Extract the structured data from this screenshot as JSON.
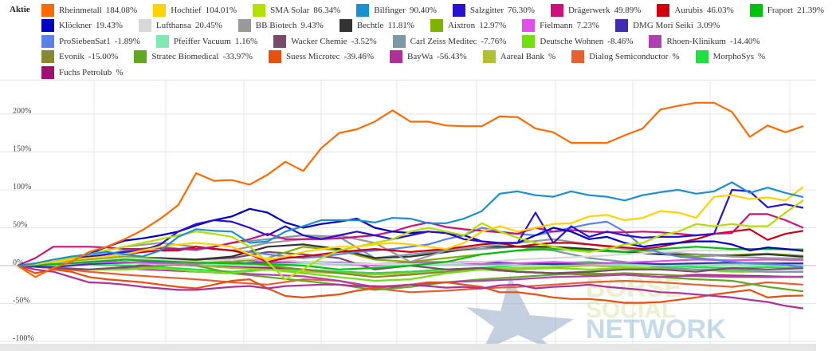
{
  "legend": {
    "title": "Aktie",
    "rows": [
      [
        {
          "name": "Rheinmetall",
          "value": "184.08%",
          "color": "#ff6a00"
        },
        {
          "name": "Hochtief",
          "value": "104.01%",
          "color": "#ffd200"
        },
        {
          "name": "SMA Solar",
          "value": "86.34%",
          "color": "#b4e000"
        },
        {
          "name": "Bilfinger",
          "value": "90.40%",
          "color": "#1a90d0"
        },
        {
          "name": "Salzgitter",
          "value": "76.30%",
          "color": "#2a10d0"
        },
        {
          "name": "Drägerwerk",
          "value": "49.89%",
          "color": "#d0107a"
        },
        {
          "name": "Aurubis",
          "value": "46.03%",
          "color": "#d00010"
        },
        {
          "name": "Fraport",
          "value": "21.39%",
          "color": "#00c010"
        }
      ],
      [
        {
          "name": "Klöckner",
          "value": "19.43%",
          "color": "#0000c0"
        },
        {
          "name": "Lufthansa",
          "value": "20.45%",
          "color": "#d8d8d8"
        },
        {
          "name": "BB Biotech",
          "value": "9.43%",
          "color": "#999999"
        },
        {
          "name": "Bechtle",
          "value": "11.81%",
          "color": "#333333"
        },
        {
          "name": "Aixtron",
          "value": "12.97%",
          "color": "#80b000"
        },
        {
          "name": "Fielmann",
          "value": "7.23%",
          "color": "#e050e8"
        },
        {
          "name": "DMG Mori Seiki",
          "value": "3.09%",
          "color": "#4030b0"
        }
      ],
      [
        {
          "name": "ProSiebenSat1",
          "value": "-1.89%",
          "color": "#5b80e8"
        },
        {
          "name": "Pfeiffer Vacuum",
          "value": "1.16%",
          "color": "#80e8b0"
        },
        {
          "name": "Wacker Chemie",
          "value": "-3.52%",
          "color": "#7a4a6a"
        },
        {
          "name": "Carl Zeiss Meditec",
          "value": "-7.76%",
          "color": "#7a9aa8"
        },
        {
          "name": "Deutsche Wohnen",
          "value": "-8.46%",
          "color": "#70e010"
        },
        {
          "name": "Rhoen-Klinikum",
          "value": "-14.40%",
          "color": "#b040b0"
        }
      ],
      [
        {
          "name": "Evonik",
          "value": "-15.00%",
          "color": "#888830"
        },
        {
          "name": "Stratec Biomedical",
          "value": "-33.97%",
          "color": "#60a820"
        },
        {
          "name": "Suess Microtec",
          "value": "-39.46%",
          "color": "#e85010"
        },
        {
          "name": "BayWa",
          "value": "-56.43%",
          "color": "#b0309a"
        },
        {
          "name": "Aareal Bank",
          "value": "%",
          "color": "#b0c030"
        },
        {
          "name": "Dialog Semiconductor",
          "value": "%",
          "color": "#e86030"
        },
        {
          "name": "MorphoSys",
          "value": "%",
          "color": "#20e040"
        }
      ],
      [
        {
          "name": "Fuchs Petrolub",
          "value": "%",
          "color": "#a01070"
        }
      ]
    ]
  },
  "watermark": {
    "line1": "BÖRSE",
    "line2": "SOCIAL",
    "line3": "NETWORK"
  },
  "chart_data": {
    "type": "line",
    "title": "",
    "xlabel": "",
    "ylabel": "",
    "ylim": [
      -100,
      245
    ],
    "yticks": [
      {
        "value": 200,
        "label": "200%"
      },
      {
        "value": 150,
        "label": "150%"
      },
      {
        "value": 100,
        "label": "100%"
      },
      {
        "value": 50,
        "label": "50%"
      },
      {
        "value": 0,
        "label": "0%"
      },
      {
        "value": -50,
        "label": "-50%"
      },
      {
        "value": -100,
        "label": "-100%"
      }
    ],
    "grid": true,
    "legend_position": "top",
    "series": [
      {
        "name": "Fuchs Petrolub",
        "color": "#a01070",
        "values": [
          0,
          3,
          5,
          4,
          2,
          0,
          -2,
          -3,
          -5,
          -8,
          -10,
          -8,
          -5,
          -5,
          -8,
          -10,
          -12,
          -12,
          -15,
          -12,
          -13,
          -14,
          -15
        ]
      },
      {
        "name": "MorphoSys",
        "color": "#20e040",
        "values": [
          0,
          1,
          2,
          0,
          -2,
          -5,
          -8,
          -5,
          -5,
          -8,
          -10,
          -8,
          -5,
          -3,
          0,
          3,
          5,
          2,
          0,
          -2,
          -3,
          -2,
          -3
        ]
      },
      {
        "name": "Dialog Semiconductor",
        "color": "#e86030",
        "values": [
          0,
          -3,
          -8,
          -12,
          -15,
          -18,
          -22,
          -25,
          -18,
          -20,
          -30,
          -35,
          -33,
          -30,
          -28,
          -25,
          -22,
          -20,
          -22,
          -25,
          -28,
          -22,
          -25
        ]
      },
      {
        "name": "Aareal Bank",
        "color": "#b0c030",
        "values": [
          0,
          2,
          3,
          5,
          3,
          0,
          -3,
          -5,
          -8,
          -10,
          -12,
          -10,
          -8,
          -5,
          -3,
          -2,
          0,
          -2,
          -3,
          -5,
          -6,
          -8,
          -8
        ]
      },
      {
        "name": "Stratec Biomedical",
        "color": "#60a820",
        "values": [
          0,
          2,
          5,
          8,
          5,
          0,
          -10,
          -15,
          -20,
          -25,
          -32,
          -28,
          -22,
          -18,
          -15,
          -12,
          -10,
          -12,
          -15,
          -18,
          -20,
          -28,
          -34
        ]
      },
      {
        "name": "Evonik",
        "color": "#888830",
        "values": [
          0,
          -3,
          -5,
          -3,
          0,
          3,
          5,
          0,
          -5,
          -10,
          -15,
          -12,
          -8,
          -5,
          -8,
          -10,
          -12,
          -10,
          -12,
          -14,
          -15,
          -15,
          -15
        ]
      },
      {
        "name": "Rhoen-Klinikum",
        "color": "#b040b0",
        "values": [
          0,
          -3,
          -5,
          -4,
          -6,
          -8,
          -10,
          -12,
          -14,
          -20,
          -28,
          -25,
          -22,
          -20,
          -18,
          -15,
          -14,
          -12,
          -15,
          -13,
          -14,
          -15,
          -14.4
        ]
      },
      {
        "name": "Deutsche Wohnen",
        "color": "#70e010",
        "values": [
          0,
          -2,
          -5,
          -5,
          -3,
          -8,
          -10,
          -5,
          -10,
          -15,
          -20,
          -18,
          -10,
          -5,
          -5,
          -3,
          -5,
          -3,
          -3,
          -5,
          -8,
          -8,
          -8.46
        ]
      },
      {
        "name": "Carl Zeiss Meditec",
        "color": "#7a9aa8",
        "values": [
          0,
          5,
          10,
          20,
          25,
          20,
          30,
          35,
          40,
          38,
          10,
          15,
          20,
          22,
          25,
          20,
          10,
          5,
          -2,
          -5,
          -5,
          -8,
          -7.76
        ]
      },
      {
        "name": "Wacker Chemie",
        "color": "#7a4a6a",
        "values": [
          0,
          -3,
          -5,
          -2,
          3,
          8,
          10,
          18,
          15,
          10,
          -5,
          0,
          -5,
          -3,
          -8,
          -10,
          -8,
          -5,
          -5,
          -8,
          -3,
          -5,
          -3.52
        ]
      },
      {
        "name": "Pfeiffer Vacuum",
        "color": "#80e8b0",
        "values": [
          0,
          1,
          2,
          3,
          2,
          2,
          1,
          2,
          3,
          2,
          1,
          1,
          2,
          1,
          0,
          1,
          2,
          1,
          0,
          1,
          2,
          1,
          1.16
        ]
      },
      {
        "name": "DMG Mori Seiki",
        "color": "#4030b0",
        "values": [
          0,
          -2,
          2,
          4,
          5,
          5,
          3,
          4,
          5,
          4,
          2,
          3,
          4,
          5,
          3,
          2,
          3,
          4,
          2,
          3,
          4,
          3,
          3.09
        ]
      },
      {
        "name": "Fielmann",
        "color": "#e050e8",
        "values": [
          0,
          2,
          4,
          5,
          3,
          2,
          8,
          5,
          5,
          3,
          0,
          5,
          5,
          2,
          3,
          5,
          3,
          4,
          6,
          8,
          7,
          8,
          7.23
        ]
      },
      {
        "name": "Aixtron",
        "color": "#80b000",
        "values": [
          0,
          3,
          8,
          12,
          10,
          6,
          5,
          10,
          25,
          20,
          8,
          5,
          10,
          15,
          20,
          25,
          20,
          18,
          15,
          12,
          14,
          16,
          12.97
        ]
      },
      {
        "name": "Bechtle",
        "color": "#333333",
        "values": [
          0,
          2,
          5,
          8,
          10,
          8,
          12,
          25,
          28,
          22,
          10,
          12,
          18,
          25,
          25,
          25,
          22,
          18,
          15,
          15,
          13,
          15,
          11.81
        ]
      },
      {
        "name": "BB Biotech",
        "color": "#999999",
        "values": [
          0,
          5,
          15,
          25,
          30,
          25,
          20,
          30,
          35,
          40,
          30,
          5,
          20,
          25,
          30,
          35,
          28,
          22,
          18,
          15,
          12,
          10,
          9.43
        ]
      },
      {
        "name": "Lufthansa",
        "color": "#d8d8d8",
        "values": [
          0,
          3,
          6,
          10,
          8,
          5,
          8,
          10,
          5,
          3,
          2,
          2,
          3,
          5,
          8,
          10,
          12,
          15,
          18,
          20,
          20,
          22,
          20.45
        ]
      },
      {
        "name": "Fraport",
        "color": "#00c010",
        "values": [
          0,
          2,
          5,
          8,
          6,
          4,
          3,
          2,
          0,
          -5,
          -3,
          0,
          5,
          15,
          20,
          22,
          20,
          18,
          22,
          25,
          22,
          22,
          21.39
        ]
      },
      {
        "name": "ProSiebenSat1",
        "color": "#5b80e8",
        "values": [
          0,
          3,
          5,
          8,
          10,
          12,
          15,
          18,
          20,
          22,
          25,
          22,
          20,
          18,
          15,
          12,
          10,
          12,
          15,
          18,
          20,
          22,
          25,
          28,
          35,
          40,
          50,
          45,
          42,
          40,
          45,
          50,
          55,
          58,
          45,
          25,
          17,
          12,
          10,
          8,
          5,
          3,
          2,
          1,
          -1.89
        ]
      },
      {
        "name": "Suess Microtec",
        "color": "#e85010",
        "values": [
          0,
          -10,
          -5,
          -8,
          -15,
          -18,
          -20,
          -22,
          -25,
          -28,
          -30,
          -25,
          -20,
          -18,
          -30,
          -40,
          -42,
          -40,
          -38,
          -33,
          -30,
          -27,
          -25,
          -22,
          -22,
          -25,
          -28,
          -35,
          -35,
          -38,
          -42,
          -44,
          -44,
          -46,
          -49,
          -49,
          -48,
          -45,
          -42,
          -38,
          -35,
          -32,
          -42,
          -40,
          -39.46
        ]
      },
      {
        "name": "BayWa",
        "color": "#b0309a",
        "values": [
          0,
          -5,
          -8,
          -15,
          -22,
          -23,
          -25,
          -28,
          -30,
          -32,
          -32,
          -30,
          -28,
          -27,
          -30,
          -27,
          -26,
          -25,
          -25,
          -27,
          -27,
          -28,
          -25,
          -27,
          -29,
          -28,
          -30,
          -26,
          -25,
          -30,
          -28,
          -27,
          -25,
          -28,
          -30,
          -32,
          -35,
          -36,
          -38,
          -40,
          -42,
          -45,
          -48,
          -53,
          -56.43
        ]
      },
      {
        "name": "Aurubis",
        "color": "#d00010",
        "values": [
          0,
          2,
          5,
          8,
          10,
          12,
          15,
          18,
          20,
          20,
          25,
          22,
          20,
          15,
          5,
          10,
          12,
          15,
          18,
          20,
          22,
          20,
          18,
          20,
          22,
          25,
          28,
          30,
          25,
          28,
          30,
          30,
          28,
          26,
          24,
          22,
          25,
          30,
          35,
          42,
          45,
          48,
          34,
          42,
          46.03
        ]
      },
      {
        "name": "Drägerwerk",
        "color": "#d0107a",
        "values": [
          0,
          10,
          25,
          25,
          25,
          24,
          22,
          22,
          23,
          22,
          22,
          25,
          30,
          35,
          42,
          35,
          35,
          35,
          36,
          38,
          40,
          45,
          52,
          57,
          51,
          48,
          46,
          44,
          42,
          50,
          45,
          47,
          45,
          44,
          44,
          45,
          44,
          42,
          40,
          42,
          43,
          68,
          68,
          60,
          49.89
        ]
      },
      {
        "name": "Klöckner",
        "color": "#0000c0",
        "values": [
          0,
          2,
          5,
          10,
          15,
          25,
          33,
          36,
          40,
          45,
          53,
          60,
          65,
          75,
          70,
          57,
          50,
          55,
          58,
          62,
          50,
          45,
          43,
          45,
          43,
          40,
          32,
          30,
          30,
          40,
          50,
          45,
          35,
          38,
          30,
          25,
          28,
          30,
          32,
          32,
          28,
          20,
          24,
          22,
          19.43
        ]
      },
      {
        "name": "Salzgitter",
        "color": "#2a10d0",
        "values": [
          0,
          2,
          5,
          10,
          12,
          15,
          18,
          20,
          28,
          45,
          55,
          60,
          58,
          50,
          40,
          52,
          40,
          35,
          40,
          45,
          40,
          35,
          40,
          45,
          43,
          35,
          32,
          30,
          30,
          70,
          30,
          52,
          38,
          45,
          40,
          37,
          38,
          38,
          40,
          42,
          100,
          98,
          77,
          81,
          76.3
        ]
      },
      {
        "name": "SMA Solar",
        "color": "#b4e000",
        "values": [
          0,
          2,
          5,
          10,
          15,
          20,
          25,
          30,
          35,
          40,
          45,
          42,
          38,
          25,
          5,
          -18,
          -5,
          10,
          20,
          25,
          30,
          35,
          45,
          50,
          45,
          40,
          56,
          45,
          37,
          30,
          25,
          20,
          18,
          22,
          28,
          30,
          40,
          45,
          55,
          52,
          55,
          52,
          52,
          70,
          86.34
        ]
      },
      {
        "name": "Hochtief",
        "color": "#ffd200",
        "values": [
          0,
          2,
          5,
          8,
          10,
          12,
          15,
          20,
          25,
          28,
          30,
          28,
          25,
          15,
          8,
          12,
          18,
          22,
          25,
          25,
          28,
          30,
          28,
          25,
          22,
          30,
          45,
          52,
          45,
          50,
          55,
          56,
          65,
          67,
          60,
          63,
          72,
          70,
          63,
          91,
          93,
          88,
          90,
          86,
          104.01
        ]
      },
      {
        "name": "Bilfinger",
        "color": "#1a90d0",
        "values": [
          0,
          3,
          8,
          12,
          15,
          18,
          15,
          12,
          20,
          38,
          48,
          46,
          45,
          30,
          32,
          45,
          52,
          60,
          60,
          60,
          57,
          63,
          62,
          56,
          56,
          62,
          72,
          95,
          98,
          93,
          91,
          98,
          93,
          91,
          86,
          93,
          97,
          100,
          95,
          98,
          110,
          96,
          103,
          96,
          90.4
        ]
      },
      {
        "name": "Rheinmetall",
        "color": "#ff6a00",
        "values": [
          0,
          -15,
          -3,
          5,
          18,
          25,
          35,
          47,
          62,
          80,
          122,
          112,
          113,
          107,
          120,
          137,
          125,
          155,
          175,
          180,
          190,
          205,
          190,
          190,
          185,
          184,
          184,
          197,
          196,
          181,
          176,
          162,
          162,
          162,
          172,
          181,
          206,
          211,
          215,
          215,
          203,
          170,
          185,
          176,
          184.08
        ]
      }
    ]
  }
}
